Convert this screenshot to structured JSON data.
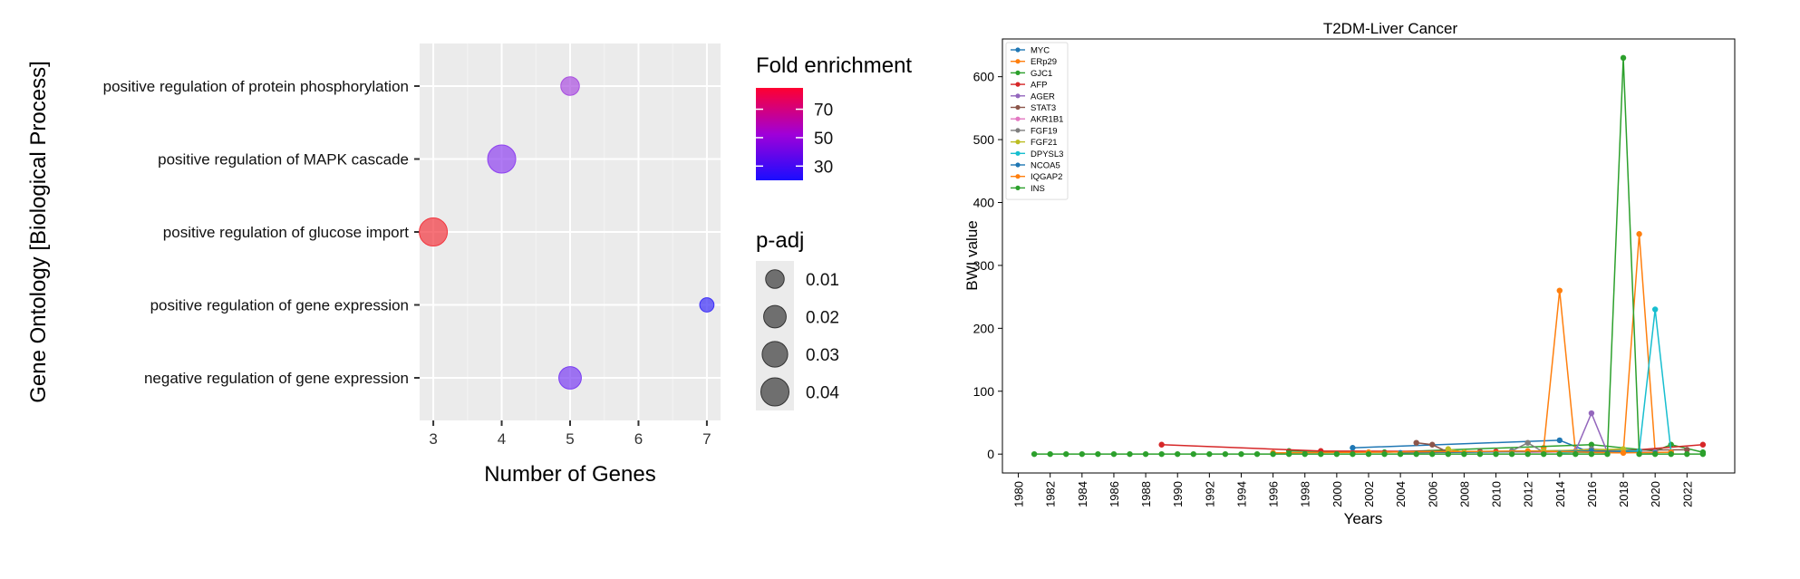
{
  "chart_data": [
    {
      "type": "scatter",
      "subtype": "bubble",
      "title": "",
      "xlabel": "Number of Genes",
      "ylabel": "Gene Ontology [Biological Process]",
      "xlim": [
        2.8,
        7.2
      ],
      "xticks": [
        "3",
        "4",
        "5",
        "6",
        "7"
      ],
      "grid": true,
      "categories": [
        "positive regulation of protein phosphorylation",
        "positive regulation of MAPK cascade",
        "positive regulation of glucose import",
        "positive regulation of gene expression",
        "negative regulation of gene expression"
      ],
      "points": [
        {
          "term": "positive regulation of protein phosphorylation",
          "genes": 5,
          "fold_enrichment": 45,
          "p_adj": 0.01,
          "color": "#a94fe0"
        },
        {
          "term": "positive regulation of MAPK cascade",
          "genes": 4,
          "fold_enrichment": 38,
          "p_adj": 0.04,
          "color": "#8e41f0"
        },
        {
          "term": "positive regulation of glucose import",
          "genes": 3,
          "fold_enrichment": 80,
          "p_adj": 0.04,
          "color": "#f2363f"
        },
        {
          "term": "positive regulation of gene expression",
          "genes": 7,
          "fold_enrichment": 18,
          "p_adj": 0.003,
          "color": "#3a2cf7"
        },
        {
          "term": "negative regulation of gene expression",
          "genes": 5,
          "fold_enrichment": 33,
          "p_adj": 0.02,
          "color": "#7a3df2"
        }
      ],
      "legend_color": {
        "title": "Fold enrichment",
        "ticks": [
          {
            "label": "70",
            "value": 70
          },
          {
            "label": "50",
            "value": 50
          },
          {
            "label": "30",
            "value": 30
          }
        ],
        "range": [
          20,
          85
        ],
        "colors": [
          "#0000ff",
          "#ff0033"
        ]
      },
      "legend_size": {
        "title": "p-adj",
        "entries": [
          {
            "label": "0.01",
            "value": 0.01
          },
          {
            "label": "0.02",
            "value": 0.02
          },
          {
            "label": "0.03",
            "value": 0.03
          },
          {
            "label": "0.04",
            "value": 0.04
          }
        ]
      }
    },
    {
      "type": "line",
      "title": "T2DM-Liver Cancer",
      "xlabel": "Years",
      "ylabel": "BWI value",
      "xlim": [
        1979,
        2025
      ],
      "ylim": [
        -30,
        660
      ],
      "xticks": [
        1980,
        1982,
        1984,
        1986,
        1988,
        1990,
        1992,
        1994,
        1996,
        1998,
        2000,
        2002,
        2004,
        2006,
        2008,
        2010,
        2012,
        2014,
        2016,
        2018,
        2020,
        2022
      ],
      "yticks": [
        0,
        100,
        200,
        300,
        400,
        500,
        600
      ],
      "legend_position": "top-left",
      "grid": false,
      "series": [
        {
          "name": "MYC",
          "color": "#1f77b4",
          "points": [
            [
              2001,
              10
            ],
            [
              2014,
              22
            ],
            [
              2016,
              2
            ]
          ]
        },
        {
          "name": "ERp29",
          "color": "#ff7f0e",
          "points": [
            [
              2013,
              10
            ],
            [
              2014,
              260
            ],
            [
              2015,
              3
            ],
            [
              2018,
              2
            ],
            [
              2019,
              350
            ],
            [
              2020,
              3
            ]
          ]
        },
        {
          "name": "GJC1",
          "color": "#2ca02c",
          "points": [
            [
              1997,
              5
            ],
            [
              2003,
              3
            ],
            [
              2016,
              15
            ],
            [
              2020,
              5
            ],
            [
              2021,
              15
            ],
            [
              2023,
              3
            ]
          ]
        },
        {
          "name": "AFP",
          "color": "#d62728",
          "points": [
            [
              1989,
              15
            ],
            [
              1999,
              5
            ],
            [
              2010,
              4
            ],
            [
              2017,
              3
            ],
            [
              2023,
              15
            ]
          ]
        },
        {
          "name": "AGER",
          "color": "#9467bd",
          "points": [
            [
              2015,
              5
            ],
            [
              2016,
              65
            ],
            [
              2017,
              3
            ]
          ]
        },
        {
          "name": "STAT3",
          "color": "#8c564b",
          "points": [
            [
              2005,
              18
            ],
            [
              2006,
              15
            ],
            [
              2007,
              3
            ],
            [
              2009,
              4
            ],
            [
              2016,
              6
            ],
            [
              2022,
              7
            ]
          ]
        },
        {
          "name": "AKR1B1",
          "color": "#e377c2",
          "points": [
            [
              2012,
              3
            ],
            [
              2016,
              4
            ],
            [
              2020,
              3
            ]
          ]
        },
        {
          "name": "FGF19",
          "color": "#7f7f7f",
          "points": [
            [
              2011,
              5
            ],
            [
              2012,
              18
            ],
            [
              2013,
              3
            ],
            [
              2016,
              8
            ],
            [
              2019,
              5
            ]
          ]
        },
        {
          "name": "FGF21",
          "color": "#bcbd22",
          "points": [
            [
              2007,
              8
            ],
            [
              2008,
              3
            ],
            [
              2013,
              5
            ],
            [
              2018,
              8
            ]
          ]
        },
        {
          "name": "DPYSL3",
          "color": "#17becf",
          "points": [
            [
              2014,
              2
            ],
            [
              2019,
              5
            ],
            [
              2020,
              230
            ],
            [
              2021,
              3
            ]
          ]
        },
        {
          "name": "NCOA5",
          "color": "#1f77b4",
          "points": [
            [
              2004,
              2
            ],
            [
              2016,
              5
            ],
            [
              2020,
              2
            ]
          ]
        },
        {
          "name": "IQGAP2",
          "color": "#ff7f0e",
          "points": [
            [
              1996,
              2
            ],
            [
              2002,
              3
            ],
            [
              2012,
              5
            ],
            [
              2018,
              2
            ],
            [
              2021,
              3
            ]
          ]
        },
        {
          "name": "INS",
          "color": "#2ca02c",
          "points": [
            [
              1981,
              0
            ],
            [
              1982,
              0
            ],
            [
              1983,
              0
            ],
            [
              1984,
              0
            ],
            [
              1985,
              0
            ],
            [
              1986,
              0
            ],
            [
              1987,
              0
            ],
            [
              1988,
              0
            ],
            [
              1989,
              0
            ],
            [
              1990,
              0
            ],
            [
              1991,
              0
            ],
            [
              1992,
              0
            ],
            [
              1993,
              0
            ],
            [
              1994,
              0
            ],
            [
              1995,
              0
            ],
            [
              1996,
              0
            ],
            [
              1997,
              0
            ],
            [
              1998,
              0
            ],
            [
              1999,
              0
            ],
            [
              2000,
              0
            ],
            [
              2001,
              0
            ],
            [
              2002,
              0
            ],
            [
              2003,
              0
            ],
            [
              2004,
              0
            ],
            [
              2005,
              0
            ],
            [
              2006,
              0
            ],
            [
              2007,
              0
            ],
            [
              2008,
              0
            ],
            [
              2009,
              0
            ],
            [
              2010,
              0
            ],
            [
              2011,
              0
            ],
            [
              2012,
              0
            ],
            [
              2013,
              0
            ],
            [
              2014,
              0
            ],
            [
              2015,
              0
            ],
            [
              2016,
              0
            ],
            [
              2017,
              0
            ],
            [
              2018,
              630
            ],
            [
              2019,
              0
            ],
            [
              2020,
              0
            ],
            [
              2021,
              0
            ],
            [
              2022,
              0
            ],
            [
              2023,
              0
            ]
          ]
        }
      ]
    }
  ]
}
